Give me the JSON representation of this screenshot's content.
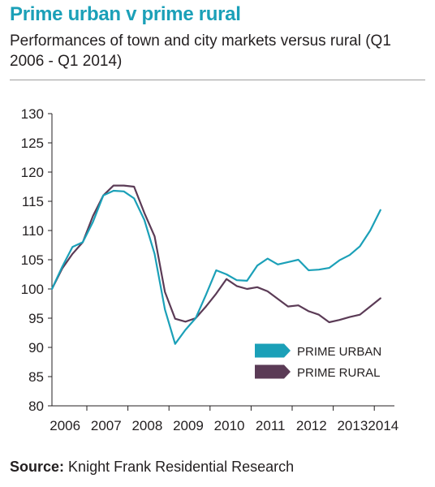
{
  "header": {
    "title": "Prime urban v prime rural",
    "subtitle": "Performances of town and city markets versus rural (Q1 2006 - Q1 2014)"
  },
  "source": {
    "label": "Source:",
    "text": "Knight Frank Residential Research"
  },
  "colors": {
    "urban": "#1ba0b8",
    "rural": "#5b3b56",
    "title": "#1ba0b8"
  },
  "chart_data": {
    "type": "line",
    "title": "Prime urban v prime rural",
    "subtitle": "Performances of town and city markets versus rural (Q1 2006 - Q1 2014)",
    "xlabel": "",
    "ylabel": "",
    "ylim": [
      80,
      130
    ],
    "yticks": [
      80,
      85,
      90,
      95,
      100,
      105,
      110,
      115,
      120,
      125,
      130
    ],
    "xlim": [
      2006,
      2014.2
    ],
    "xticks": [
      "2006",
      "2007",
      "2008",
      "2009",
      "2010",
      "2011",
      "2012",
      "2013",
      "2014"
    ],
    "grid": false,
    "legend": "bottom-right",
    "x": [
      2006.0,
      2006.25,
      2006.5,
      2006.75,
      2007.0,
      2007.25,
      2007.5,
      2007.75,
      2008.0,
      2008.25,
      2008.5,
      2008.75,
      2009.0,
      2009.25,
      2009.5,
      2009.75,
      2010.0,
      2010.25,
      2010.5,
      2010.75,
      2011.0,
      2011.25,
      2011.5,
      2011.75,
      2012.0,
      2012.25,
      2012.5,
      2012.75,
      2013.0,
      2013.25,
      2013.5,
      2013.75,
      2014.0
    ],
    "series": [
      {
        "name": "PRIME URBAN",
        "values": [
          100.0,
          103.8,
          107.2,
          108.0,
          111.5,
          116.0,
          116.8,
          116.7,
          115.5,
          111.8,
          106.0,
          96.5,
          90.6,
          93.0,
          95.0,
          99.0,
          103.2,
          102.5,
          101.5,
          101.4,
          104.0,
          105.2,
          104.2,
          104.6,
          105.0,
          103.2,
          103.3,
          103.6,
          104.9,
          105.8,
          107.3,
          110.0,
          113.5
        ]
      },
      {
        "name": "PRIME RURAL",
        "values": [
          100.0,
          103.5,
          106.0,
          108.0,
          112.5,
          116.0,
          117.7,
          117.7,
          117.5,
          113.0,
          109.0,
          99.5,
          94.9,
          94.4,
          95.0,
          97.0,
          99.2,
          101.7,
          100.5,
          100.0,
          100.3,
          99.6,
          98.3,
          97.0,
          97.2,
          96.2,
          95.6,
          94.3,
          94.7,
          95.2,
          95.6,
          97.0,
          98.4
        ]
      }
    ]
  }
}
